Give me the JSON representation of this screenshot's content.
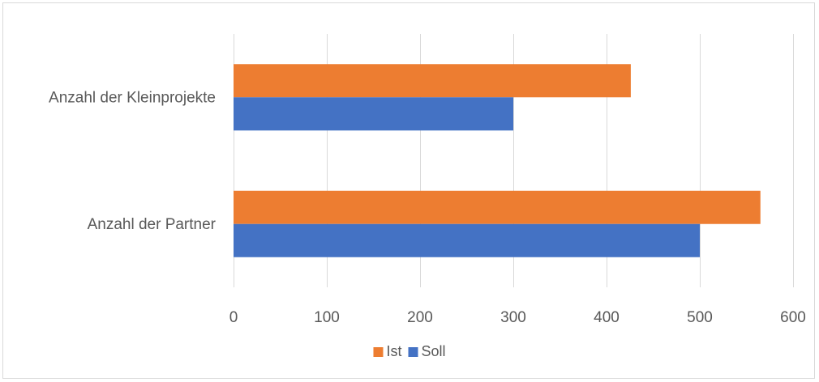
{
  "chart_data": {
    "type": "bar",
    "orientation": "horizontal",
    "categories": [
      "Anzahl der Kleinprojekte",
      "Anzahl der Partner"
    ],
    "series": [
      {
        "name": "Ist",
        "values": [
          426,
          565
        ],
        "color": "#ED7D31"
      },
      {
        "name": "Soll",
        "values": [
          300,
          500
        ],
        "color": "#4472C4"
      }
    ],
    "xlim": [
      0,
      600
    ],
    "x_ticks": [
      0,
      100,
      200,
      300,
      400,
      500,
      600
    ],
    "gridlines": true,
    "gridline_color": "#d9d9d9",
    "legend_position": "bottom"
  }
}
